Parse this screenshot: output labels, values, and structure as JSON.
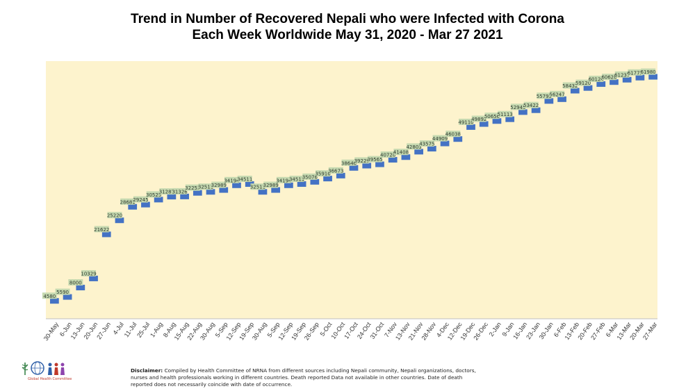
{
  "chart_data": {
    "type": "bar",
    "title_line1": "Trend in Number of Recovered Nepali who were Infected with Corona",
    "title_line2": "Each Week Worldwide May 31, 2020 - Mar 27 2021",
    "xlabel": "",
    "ylabel": "",
    "ylim": [
      0,
      66000
    ],
    "grid": false,
    "legend": "none",
    "colors": {
      "plot_bg": "#FDF3CD",
      "bar": "#4472C4",
      "label_bg": "#C6D9B0",
      "label_text": "#2F3B2F"
    },
    "categories": [
      "30-May",
      "6-Jun",
      "13-Jun",
      "20-Jun",
      "27-Jun",
      "4-Jul",
      "11-Jul",
      "25-Jul",
      "1-Aug",
      "8-Aug",
      "15-Aug",
      "22-Aug",
      "30-Aug",
      "5-Sep",
      "12-Sep",
      "19-Sep",
      "30-Aug",
      "5-Sep",
      "12-Sep",
      "19-Sep",
      "26-Sep",
      "5-Oct",
      "10-Oct",
      "17-Oct",
      "24-Oct",
      "31-Oct",
      "7-Nov",
      "13-Nov",
      "21-Nov",
      "28-Nov",
      "4-Dec",
      "12-Dec",
      "19-Dec",
      "26-Dec",
      "2-Jan",
      "9-Jan",
      "16-Jan",
      "23-Jan",
      "30-Jan",
      "6-Feb",
      "13-Feb",
      "20-Feb",
      "27-Feb",
      "6-Mar",
      "13-Mar",
      "20-Mar",
      "27-Mar"
    ],
    "values": [
      4580,
      5590,
      8000,
      10329,
      21622,
      25220,
      28681,
      29245,
      30525,
      31287,
      31326,
      32253,
      32511,
      32989,
      34194,
      34511,
      32511,
      32989,
      34194,
      34511,
      35076,
      35916,
      36673,
      38646,
      39229,
      39565,
      40728,
      41408,
      42803,
      43575,
      44909,
      46038,
      49110,
      49892,
      50656,
      51113,
      52945,
      53422,
      55793,
      56247,
      58432,
      59120,
      60124,
      60628,
      61237,
      61773,
      61980
    ],
    "labels": [
      "4580",
      "5590",
      "8000",
      "10329",
      "21622",
      "25220",
      "28681",
      "29245",
      "30525",
      "31287",
      "31326",
      "32253",
      "32511",
      "32989",
      "34194",
      "34511",
      "32511",
      "32989",
      "34194",
      "34511",
      "35076",
      "35916",
      "36673",
      "38646",
      "39229",
      "39565",
      "40728",
      "41408",
      "42803",
      "43575",
      "44909",
      "46038",
      "49110",
      "49892",
      "50656",
      "51113",
      "52945",
      "53422",
      "55793",
      "56247",
      "58432",
      "59120",
      "60124",
      "60628",
      "61237",
      "61773",
      "61980"
    ]
  },
  "footer": {
    "logo_text": "Global Health Committee",
    "disclaimer_label": "Disclaimer:",
    "disclaimer_text": "Compiled by Health Committee of NRNA from different sources including Nepali community, Nepali organizations, doctors, nurses and health professionals working in different countries. Death reported Data not available in other countries. Date of death reported does not necessarily coincide with date of occurrence."
  }
}
